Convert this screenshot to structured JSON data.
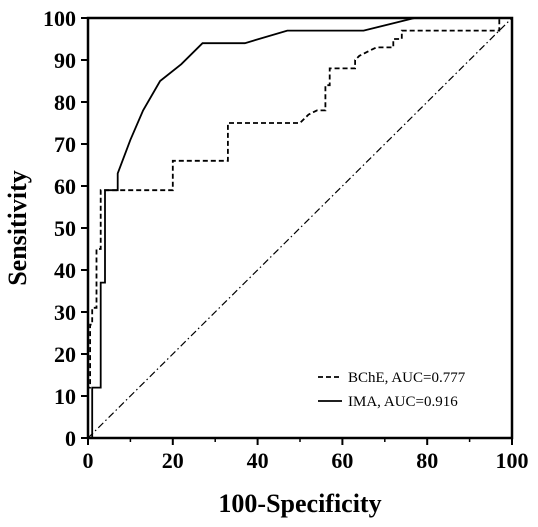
{
  "chart_data": {
    "type": "line",
    "title": "",
    "xlabel": "100-Specificity",
    "ylabel": "Sensitivity",
    "xlim": [
      0,
      100
    ],
    "ylim": [
      0,
      100
    ],
    "xticks": [
      0,
      20,
      40,
      60,
      80,
      100
    ],
    "yticks": [
      0,
      10,
      20,
      30,
      40,
      50,
      60,
      70,
      80,
      90,
      100
    ],
    "xtick_labels": [
      "0",
      "20",
      "40",
      "60",
      "80",
      "100"
    ],
    "ytick_labels": [
      "0",
      "10",
      "20",
      "30",
      "40",
      "50",
      "60",
      "70",
      "80",
      "90",
      "100"
    ],
    "grid": false,
    "legend_position": "bottom-right",
    "reference_line": {
      "x": [
        0,
        100
      ],
      "y": [
        0,
        100
      ],
      "style": "dash-dot"
    },
    "series": [
      {
        "name": "BChE, AUC=0.777",
        "style": "dashed",
        "x": [
          0,
          0,
          0.5,
          0.5,
          1,
          1,
          2,
          2,
          3,
          3,
          7,
          7,
          20,
          20,
          33,
          33,
          50,
          52,
          54,
          56,
          56,
          57,
          57,
          63,
          63,
          64,
          66,
          68,
          70,
          72,
          72,
          74,
          74,
          97,
          97,
          100
        ],
        "y": [
          0,
          12,
          12,
          27,
          27,
          31,
          31,
          45,
          45,
          59,
          59,
          59,
          59,
          66,
          66,
          75,
          75,
          77,
          78,
          78,
          84,
          84,
          88,
          88,
          90,
          91,
          92,
          93,
          93,
          93,
          95,
          95,
          97,
          97,
          100,
          100
        ]
      },
      {
        "name": "IMA, AUC=0.916",
        "style": "solid",
        "x": [
          0,
          1,
          1,
          3,
          3,
          4,
          4,
          7,
          7,
          10,
          13,
          17,
          22,
          27,
          37,
          47,
          57,
          65,
          77,
          97,
          97,
          100
        ],
        "y": [
          0,
          0,
          12,
          12,
          37,
          37,
          59,
          59,
          63,
          71,
          78,
          85,
          89,
          94,
          94,
          97,
          97,
          97,
          100,
          100,
          100,
          100
        ]
      }
    ]
  }
}
